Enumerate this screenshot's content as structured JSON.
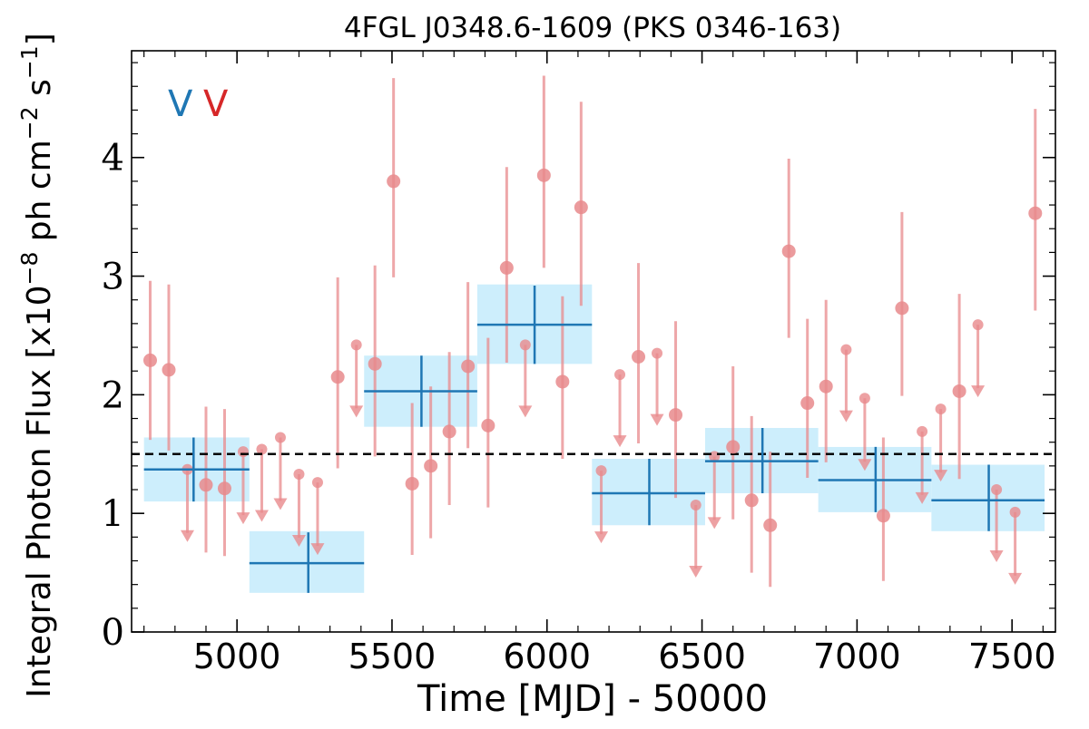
{
  "chart_data": {
    "type": "scatter",
    "title": "4FGL J0348.6-1609 (PKS 0346-163)",
    "xlabel": "Time [MJD] - 50000",
    "ylabel": "Integral Photon Flux [x10^-8 ph cm^-2 s^-1]",
    "ylabel_parts": {
      "main": "Integral Photon Flux [x10",
      "exp1": "−8",
      "mid": " ph cm",
      "exp2": "−2",
      "mid2": " s",
      "exp3": "−1",
      "end": "]"
    },
    "xlim": [
      4660,
      7640
    ],
    "ylim": [
      0,
      4.9
    ],
    "x_ticks": [
      5000,
      5500,
      6000,
      6500,
      7000,
      7500
    ],
    "x_tick_labels": [
      "5000",
      "5500",
      "6000",
      "6500",
      "7000",
      "7500"
    ],
    "y_ticks": [
      0,
      1,
      2,
      3,
      4
    ],
    "y_tick_labels": [
      "0",
      "1",
      "2",
      "3",
      "4"
    ],
    "grid": false,
    "legend": {
      "placement": "top-left",
      "entries": [
        {
          "label": "V",
          "color": "#1f77b4"
        },
        {
          "label": "V",
          "color": "#d62728"
        }
      ]
    },
    "reference_line": {
      "y": 1.5,
      "style": "dashed",
      "color": "#000000"
    },
    "colors": {
      "long_bins": "#1f77b4",
      "long_bin_box": "#cdeefc",
      "short_bins": "#e8898c",
      "short_upper_limits": "#e8898c"
    },
    "long_bins": [
      {
        "x": 4860,
        "x_lo": 4700,
        "x_hi": 5040,
        "y": 1.37,
        "y_lo": 1.1,
        "y_hi": 1.64,
        "box_lo": 1.1,
        "box_hi": 1.64
      },
      {
        "x": 5230,
        "x_lo": 5040,
        "x_hi": 5410,
        "y": 0.58,
        "y_lo": 0.33,
        "y_hi": 0.84,
        "box_lo": 0.33,
        "box_hi": 0.85
      },
      {
        "x": 5595,
        "x_lo": 5410,
        "x_hi": 5775,
        "y": 2.03,
        "y_lo": 1.73,
        "y_hi": 2.33,
        "box_lo": 1.73,
        "box_hi": 2.33
      },
      {
        "x": 5960,
        "x_lo": 5775,
        "x_hi": 6145,
        "y": 2.59,
        "y_lo": 2.26,
        "y_hi": 2.92,
        "box_lo": 2.26,
        "box_hi": 2.93
      },
      {
        "x": 6330,
        "x_lo": 6145,
        "x_hi": 6510,
        "y": 1.17,
        "y_lo": 0.9,
        "y_hi": 1.46,
        "box_lo": 0.9,
        "box_hi": 1.46
      },
      {
        "x": 6695,
        "x_lo": 6510,
        "x_hi": 6875,
        "y": 1.44,
        "y_lo": 1.17,
        "y_hi": 1.72,
        "box_lo": 1.17,
        "box_hi": 1.72
      },
      {
        "x": 7060,
        "x_lo": 6875,
        "x_hi": 7240,
        "y": 1.28,
        "y_lo": 1.01,
        "y_hi": 1.56,
        "box_lo": 1.01,
        "box_hi": 1.56
      },
      {
        "x": 7425,
        "x_lo": 7240,
        "x_hi": 7605,
        "y": 1.11,
        "y_lo": 0.85,
        "y_hi": 1.41,
        "box_lo": 0.85,
        "box_hi": 1.41
      }
    ],
    "short_bins": [
      {
        "x": 4720,
        "y": 2.29,
        "y_lo": 1.62,
        "y_hi": 2.96
      },
      {
        "x": 4780,
        "y": 2.21,
        "y_lo": 1.53,
        "y_hi": 2.93
      },
      {
        "x": 4900,
        "y": 1.24,
        "y_lo": 0.67,
        "y_hi": 1.9
      },
      {
        "x": 4960,
        "y": 1.21,
        "y_lo": 0.64,
        "y_hi": 1.88
      },
      {
        "x": 5325,
        "y": 2.15,
        "y_lo": 1.38,
        "y_hi": 2.99
      },
      {
        "x": 5445,
        "y": 2.26,
        "y_lo": 1.48,
        "y_hi": 3.09
      },
      {
        "x": 5505,
        "y": 3.8,
        "y_lo": 2.99,
        "y_hi": 4.67
      },
      {
        "x": 5565,
        "y": 1.25,
        "y_lo": 0.65,
        "y_hi": 1.93
      },
      {
        "x": 5625,
        "y": 1.4,
        "y_lo": 0.79,
        "y_hi": 2.07
      },
      {
        "x": 5685,
        "y": 1.69,
        "y_lo": 1.07,
        "y_hi": 2.36
      },
      {
        "x": 5745,
        "y": 2.24,
        "y_lo": 1.55,
        "y_hi": 2.95
      },
      {
        "x": 5810,
        "y": 1.74,
        "y_lo": 1.05,
        "y_hi": 2.48
      },
      {
        "x": 5870,
        "y": 3.07,
        "y_lo": 2.27,
        "y_hi": 3.92
      },
      {
        "x": 5990,
        "y": 3.85,
        "y_lo": 3.07,
        "y_hi": 4.69
      },
      {
        "x": 6050,
        "y": 2.11,
        "y_lo": 1.46,
        "y_hi": 2.83
      },
      {
        "x": 6110,
        "y": 3.58,
        "y_lo": 2.75,
        "y_hi": 4.47
      },
      {
        "x": 6295,
        "y": 2.32,
        "y_lo": 1.59,
        "y_hi": 3.11
      },
      {
        "x": 6415,
        "y": 1.83,
        "y_lo": 1.13,
        "y_hi": 2.62
      },
      {
        "x": 6600,
        "y": 1.56,
        "y_lo": 0.95,
        "y_hi": 2.24
      },
      {
        "x": 6660,
        "y": 1.11,
        "y_lo": 0.5,
        "y_hi": 1.82
      },
      {
        "x": 6720,
        "y": 0.9,
        "y_lo": 0.38,
        "y_hi": 1.52
      },
      {
        "x": 6780,
        "y": 3.21,
        "y_lo": 2.48,
        "y_hi": 3.99
      },
      {
        "x": 6840,
        "y": 1.93,
        "y_lo": 1.3,
        "y_hi": 2.64
      },
      {
        "x": 6900,
        "y": 2.07,
        "y_lo": 1.43,
        "y_hi": 2.8
      },
      {
        "x": 7085,
        "y": 0.98,
        "y_lo": 0.43,
        "y_hi": 1.64
      },
      {
        "x": 7145,
        "y": 2.73,
        "y_lo": 1.99,
        "y_hi": 3.54
      },
      {
        "x": 7330,
        "y": 2.03,
        "y_lo": 1.29,
        "y_hi": 2.85
      },
      {
        "x": 7575,
        "y": 3.53,
        "y_lo": 2.71,
        "y_hi": 4.41
      }
    ],
    "upper_limits": [
      {
        "x": 4840,
        "y": 1.37
      },
      {
        "x": 5020,
        "y": 1.52
      },
      {
        "x": 5080,
        "y": 1.54
      },
      {
        "x": 5140,
        "y": 1.64
      },
      {
        "x": 5200,
        "y": 1.33
      },
      {
        "x": 5260,
        "y": 1.26
      },
      {
        "x": 5385,
        "y": 2.42
      },
      {
        "x": 5930,
        "y": 2.42
      },
      {
        "x": 6175,
        "y": 1.36
      },
      {
        "x": 6235,
        "y": 2.17
      },
      {
        "x": 6355,
        "y": 2.35
      },
      {
        "x": 6480,
        "y": 1.07
      },
      {
        "x": 6540,
        "y": 1.48
      },
      {
        "x": 6965,
        "y": 2.38
      },
      {
        "x": 7025,
        "y": 1.97
      },
      {
        "x": 7210,
        "y": 1.69
      },
      {
        "x": 7270,
        "y": 1.88
      },
      {
        "x": 7390,
        "y": 2.59
      },
      {
        "x": 7450,
        "y": 1.2
      },
      {
        "x": 7510,
        "y": 1.01
      }
    ]
  }
}
